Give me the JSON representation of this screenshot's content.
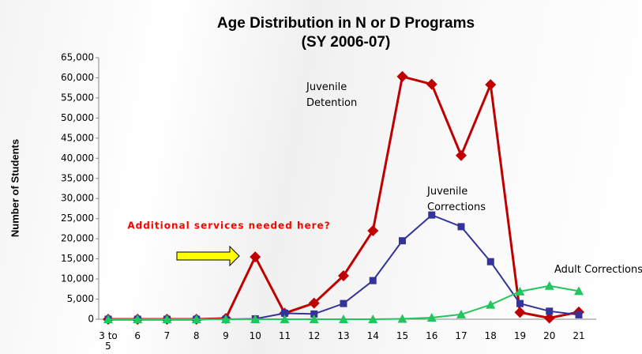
{
  "chart_data": {
    "type": "line",
    "title": "Age Distribution in N or D Programs",
    "subtitle": "(SY 2006-07)",
    "y_label": "Number of Students",
    "annotation": "Additional services needed here?",
    "categories": [
      "3 to 5",
      "6",
      "7",
      "8",
      "9",
      "10",
      "11",
      "12",
      "13",
      "14",
      "15",
      "16",
      "17",
      "18",
      "19",
      "20",
      "21"
    ],
    "series": [
      {
        "name": "Juvenile Detention",
        "color": "#c00000",
        "marker": "diamond",
        "values": [
          0,
          0,
          0,
          0,
          200,
          15500,
          1500,
          4000,
          10800,
          22000,
          60300,
          58400,
          40700,
          58300,
          1700,
          300,
          1800
        ]
      },
      {
        "name": "Juvenile Corrections",
        "color": "#333399",
        "marker": "square",
        "values": [
          0,
          0,
          0,
          0,
          0,
          100,
          1500,
          1300,
          3900,
          9600,
          19500,
          25900,
          23000,
          14300,
          3900,
          2000,
          1100
        ]
      },
      {
        "name": "Adult Corrections",
        "color": "#22c55e",
        "marker": "triangle",
        "values": [
          0,
          0,
          0,
          0,
          0,
          0,
          0,
          0,
          0,
          0,
          100,
          400,
          1200,
          3600,
          6900,
          8300,
          7000
        ]
      }
    ],
    "ylim": [
      0,
      65000
    ],
    "yticks": [
      0,
      {
        "value": 5000,
        "label": "5,000"
      },
      {
        "value": 10000,
        "label": "10,000"
      },
      {
        "value": 15000,
        "label": "15,000"
      },
      {
        "value": 20000,
        "label": "20,000"
      },
      {
        "value": 25000,
        "label": "25,000"
      },
      {
        "value": 30000,
        "label": "30,000"
      },
      {
        "value": 35000,
        "label": "35,000"
      },
      {
        "value": 40000,
        "label": "40,000"
      },
      {
        "value": 45000,
        "label": "45,000"
      },
      {
        "value": 50000,
        "label": "50,000"
      },
      {
        "value": 55000,
        "label": "55,000"
      },
      {
        "value": 60000,
        "label": "60,000"
      },
      {
        "value": 65000,
        "label": "65,000"
      }
    ],
    "grid": false
  }
}
